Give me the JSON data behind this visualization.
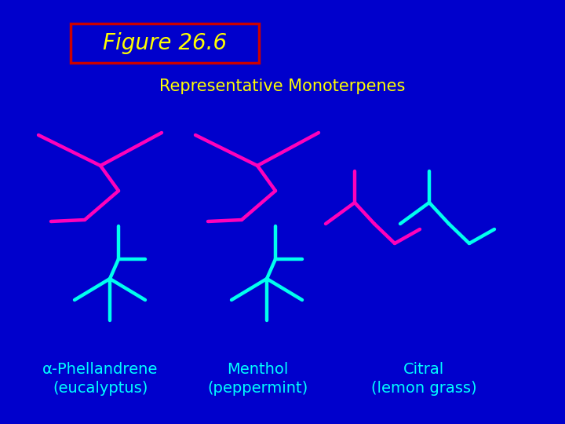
{
  "bg_color": "#0000CC",
  "title_text": "Figure 26.6",
  "title_box_color": "#CC0000",
  "title_text_color": "#FFFF00",
  "subtitle_text": "Representative Monoterpenes",
  "subtitle_color": "#FFFF00",
  "label_color": "#00FFFF",
  "pink": "#FF00BB",
  "cyan": "#00FFEE",
  "lw": 3.2,
  "alpha_label1": "α-Phellandrene",
  "alpha_label2": "(eucalyptus)",
  "menthol_label1": "Menthol",
  "menthol_label2": "(peppermint)",
  "citral_label1": "Citral",
  "citral_label2": "(lemon grass)"
}
